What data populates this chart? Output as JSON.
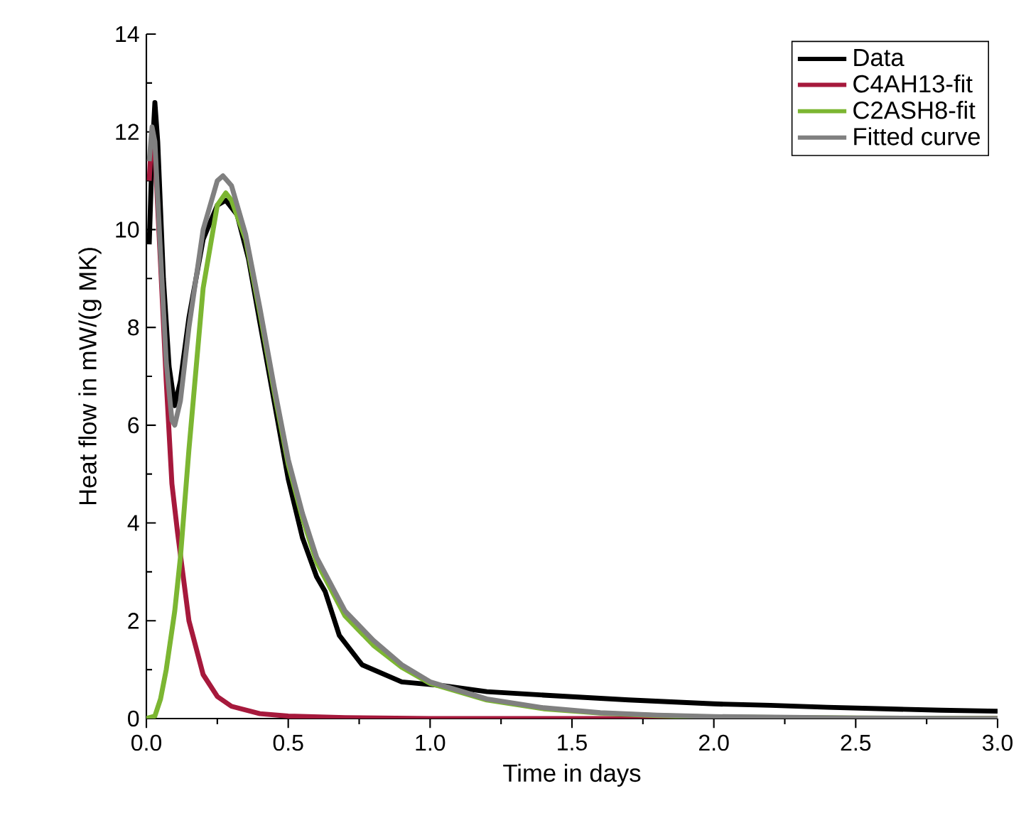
{
  "chart_data": {
    "type": "line",
    "xlabel": "Time in days",
    "ylabel": "Heat flow in mW/(g MK)",
    "xlim": [
      0,
      3.0
    ],
    "ylim": [
      0,
      14
    ],
    "xticks": [
      {
        "value": 0,
        "label": "0.0"
      },
      {
        "value": 0.5,
        "label": "0.5"
      },
      {
        "value": 1,
        "label": "1.0"
      },
      {
        "value": 1.5,
        "label": "1.5"
      },
      {
        "value": 2,
        "label": "2.0"
      },
      {
        "value": 2.5,
        "label": "2.5"
      },
      {
        "value": 3,
        "label": "3.0"
      }
    ],
    "yticks": [
      0,
      2,
      4,
      6,
      8,
      10,
      12,
      14
    ],
    "legend": "top right",
    "grid": false,
    "marker": "none",
    "line_style": "solid",
    "series": [
      {
        "name": "Data",
        "color": "#000000",
        "x": [
          0.01,
          0.02,
          0.03,
          0.04,
          0.06,
          0.08,
          0.1,
          0.12,
          0.15,
          0.2,
          0.25,
          0.28,
          0.32,
          0.36,
          0.4,
          0.45,
          0.5,
          0.55,
          0.6,
          0.63,
          0.68,
          0.76,
          0.9,
          1.05,
          1.2,
          1.4,
          1.7,
          2.0,
          2.2,
          2.4,
          2.6,
          2.8,
          3.0
        ],
        "values": [
          9.7,
          11.5,
          12.6,
          11.8,
          9.0,
          7.2,
          6.4,
          6.9,
          8.2,
          9.8,
          10.5,
          10.6,
          10.3,
          9.4,
          8.1,
          6.5,
          4.9,
          3.7,
          2.9,
          2.6,
          1.7,
          1.1,
          0.75,
          0.67,
          0.55,
          0.48,
          0.38,
          0.3,
          0.27,
          0.23,
          0.2,
          0.17,
          0.15
        ]
      },
      {
        "name": "C4AH13-fit",
        "color": "#a6193c",
        "x": [
          0.01,
          0.02,
          0.03,
          0.05,
          0.07,
          0.09,
          0.11,
          0.13,
          0.15,
          0.2,
          0.25,
          0.3,
          0.4,
          0.5,
          0.7,
          1.0,
          3.0
        ],
        "values": [
          11.0,
          12.0,
          11.6,
          9.3,
          6.9,
          4.8,
          3.8,
          2.9,
          2.0,
          0.9,
          0.45,
          0.25,
          0.1,
          0.05,
          0.02,
          0.0,
          0.0
        ]
      },
      {
        "name": "C2ASH8-fit",
        "color": "#7cb632",
        "x": [
          0.0,
          0.03,
          0.05,
          0.07,
          0.1,
          0.12,
          0.15,
          0.2,
          0.25,
          0.28,
          0.3,
          0.35,
          0.4,
          0.45,
          0.5,
          0.55,
          0.6,
          0.7,
          0.8,
          0.9,
          1.0,
          1.2,
          1.4,
          1.6,
          1.8,
          2.0,
          2.5,
          3.0
        ],
        "values": [
          0.0,
          0.05,
          0.4,
          1.0,
          2.2,
          3.3,
          5.5,
          8.8,
          10.5,
          10.75,
          10.6,
          9.8,
          8.3,
          6.7,
          5.2,
          4.1,
          3.2,
          2.1,
          1.5,
          1.05,
          0.72,
          0.38,
          0.2,
          0.11,
          0.06,
          0.03,
          0.01,
          0.0
        ]
      },
      {
        "name": "Fitted curve",
        "color": "#808080",
        "x": [
          0.01,
          0.02,
          0.03,
          0.05,
          0.07,
          0.09,
          0.1,
          0.12,
          0.15,
          0.2,
          0.25,
          0.27,
          0.3,
          0.35,
          0.4,
          0.45,
          0.5,
          0.55,
          0.6,
          0.7,
          0.8,
          0.9,
          1.0,
          1.2,
          1.4,
          1.6,
          1.8,
          2.0,
          2.5,
          3.0
        ],
        "values": [
          11.4,
          12.1,
          11.8,
          9.5,
          7.3,
          6.1,
          6.0,
          6.5,
          8.0,
          10.0,
          11.0,
          11.1,
          10.9,
          9.9,
          8.4,
          6.8,
          5.3,
          4.2,
          3.3,
          2.2,
          1.6,
          1.1,
          0.75,
          0.4,
          0.22,
          0.12,
          0.07,
          0.04,
          0.01,
          0.0
        ]
      }
    ]
  }
}
